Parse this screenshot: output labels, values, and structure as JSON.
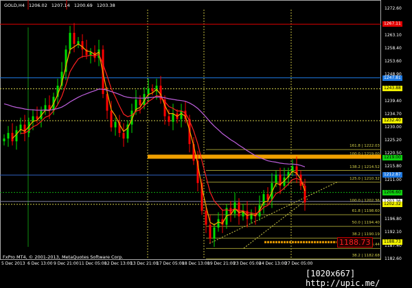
{
  "header": {
    "symbol": "GOLD,H4",
    "open": "1206.02",
    "high": "1207.14",
    "low": "1200.69",
    "close": "1203.38"
  },
  "copyright": "FxPro MT4, © 2001-2013, MetaQuotes Software Corp.",
  "watermark": "[1020x667] http://upic.me/",
  "time_labels": [
    "5 Dec 2013",
    "6 Dec 13:00",
    "9 Dec 21:00",
    "11 Dec 05:00",
    "12 Dec 13:00",
    "13 Dec 21:00",
    "17 Dec 05:00",
    "18 Dec 13:00",
    "19 Dec 21:00",
    "23 Dec 05:00",
    "24 Dec 13:00",
    "27 Dec 05:00"
  ],
  "price_labels": [
    "1272.60",
    "1263.10",
    "1258.40",
    "1253.60",
    "1248.90",
    "1239.40",
    "1234.70",
    "1230.00",
    "1225.20",
    "1220.50",
    "1215.80",
    "1211.00",
    "1196.80",
    "1192.10",
    "1187.40",
    "1182.60"
  ],
  "price_tags": [
    {
      "text": "1267.11",
      "color": "#e00000"
    },
    {
      "text": "1247.81",
      "color": "#1e78e0"
    },
    {
      "text": "1243.88",
      "color": "#f0f000"
    },
    {
      "text": "1232.40",
      "color": "#f0f000"
    },
    {
      "text": "1219.00",
      "color": "#10d010"
    },
    {
      "text": "1212.87",
      "color": "#1e78e0"
    },
    {
      "text": "1206.60",
      "color": "#10d010"
    },
    {
      "text": "1203.36",
      "color": "#ffffff"
    },
    {
      "text": "1202.32",
      "color": "#f0f000"
    },
    {
      "text": "1188.73",
      "color": "#f0f000"
    }
  ],
  "fib_levels": [
    {
      "label": "161.8 | 1222.03",
      "price": 1222.03
    },
    {
      "label": "100.0 | 1219.00",
      "price": 1219.0
    },
    {
      "label": "138.2 | 1214.52",
      "price": 1214.52
    },
    {
      "label": "125.0 | 1210.32",
      "price": 1210.32
    },
    {
      "label": "100.0 | 1202.36",
      "price": 1202.36
    },
    {
      "label": "61.8 | 1198.60",
      "price": 1198.6
    },
    {
      "label": "50.0 | 1194.40",
      "price": 1194.4
    },
    {
      "label": "38.2 | 1190.19",
      "price": 1190.19
    },
    {
      "label": "0.0 | 1186.44",
      "price": 1186.44
    },
    {
      "label": "38.2 | 1182.68",
      "price": 1182.68
    }
  ],
  "alert_label": "1188.73",
  "chart_data": {
    "type": "candlestick",
    "ylim": [
      1182.6,
      1272.6
    ],
    "colors": {
      "bull": "#00e000",
      "bear": "#ff0000",
      "ma_fast": "#ffa500",
      "ma_mid": "#ff2020",
      "ma_slow": "#c060e0"
    },
    "close": [
      1226,
      1228,
      1225,
      1229,
      1231,
      1228,
      1232,
      1234,
      1233,
      1236,
      1238,
      1236,
      1241,
      1245,
      1250,
      1258,
      1264,
      1260,
      1261,
      1258,
      1256,
      1257,
      1255,
      1258,
      1242,
      1236,
      1230,
      1232,
      1228,
      1226,
      1231,
      1236,
      1240,
      1238,
      1242,
      1244,
      1243,
      1245,
      1240,
      1234,
      1232,
      1235,
      1233,
      1236,
      1233,
      1224,
      1218,
      1210,
      1200,
      1195,
      1190,
      1194,
      1197,
      1195,
      1201,
      1199,
      1203,
      1198,
      1200,
      1197,
      1199,
      1198,
      1202,
      1206,
      1204,
      1210,
      1213,
      1209,
      1212,
      1214,
      1216,
      1213,
      1209,
      1203
    ],
    "hlines": [
      {
        "price": 1267.11,
        "color": "#e00000",
        "style": "solid"
      },
      {
        "price": 1247.81,
        "color": "#1e78e0",
        "style": "solid"
      },
      {
        "price": 1243.88,
        "color": "#d4d04a",
        "style": "dotted"
      },
      {
        "price": 1232.4,
        "color": "#d4d04a",
        "style": "dotted"
      },
      {
        "price": 1212.87,
        "color": "#3060c0",
        "style": "solid"
      },
      {
        "price": 1206.6,
        "color": "#10b010",
        "style": "dotted"
      },
      {
        "price": 1203.36,
        "color": "#8080a0",
        "style": "solid"
      },
      {
        "price": 1202.32,
        "color": "#d4d04a",
        "style": "dotted"
      }
    ]
  }
}
